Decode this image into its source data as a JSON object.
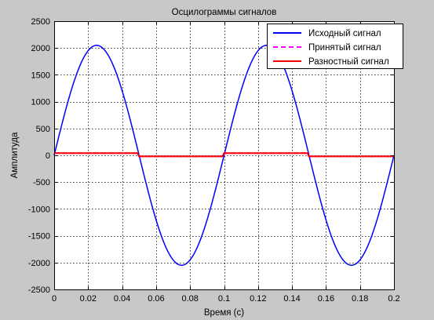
{
  "chart_data": {
    "type": "line",
    "title": "Осцилограммы сигналов",
    "xlabel": "Время (с)",
    "ylabel": "Амплитуда",
    "xlim": [
      0,
      0.2
    ],
    "ylim": [
      -2500,
      2500
    ],
    "xticks": [
      0,
      0.02,
      0.04,
      0.06,
      0.08,
      0.1,
      0.12,
      0.14,
      0.16,
      0.18,
      0.2
    ],
    "xtick_labels": [
      "0",
      "0.02",
      "0.04",
      "0.06",
      "0.08",
      "0.1",
      "0.12",
      "0.14",
      "0.16",
      "0.18",
      "0.2"
    ],
    "yticks": [
      -2500,
      -2000,
      -1500,
      -1000,
      -500,
      0,
      500,
      1000,
      1500,
      2000,
      2500
    ],
    "ytick_labels": [
      "-2500",
      "-2000",
      "-1500",
      "-1000",
      "-500",
      "0",
      "500",
      "1000",
      "1500",
      "2000",
      "2500"
    ],
    "grid": true,
    "grid_style": "dotted",
    "legend_position": "top-right",
    "background": "#c8c8c8",
    "plot_background": "#ffffff",
    "series": [
      {
        "name": "Исходный сигнал",
        "color": "#0000ff",
        "dash": "solid",
        "x": [
          0,
          0.01,
          0.02,
          0.025,
          0.03,
          0.04,
          0.05,
          0.06,
          0.07,
          0.075,
          0.08,
          0.09,
          0.1,
          0.11,
          0.12,
          0.125,
          0.13,
          0.14,
          0.15,
          0.16,
          0.17,
          0.175,
          0.18,
          0.19,
          0.2
        ],
        "y": [
          0,
          1200,
          1950,
          2050,
          1950,
          1200,
          0,
          -1200,
          -1950,
          -2050,
          -1950,
          -1200,
          0,
          1200,
          1950,
          2050,
          1950,
          1200,
          0,
          -1200,
          -1950,
          -2050,
          -1950,
          -1200,
          0
        ]
      },
      {
        "name": "Принятый сигнал",
        "color": "#ff00ff",
        "dash": "dashed",
        "x": [
          0,
          0.05,
          0.1,
          0.15,
          0.2
        ],
        "y": [
          40,
          40,
          -20,
          40,
          -20
        ]
      },
      {
        "name": "Разностный сигнал",
        "color": "#ff0000",
        "dash": "solid",
        "x": [
          0,
          0.05,
          0.1,
          0.15,
          0.2
        ],
        "y": [
          40,
          40,
          -20,
          40,
          -20
        ]
      }
    ]
  }
}
